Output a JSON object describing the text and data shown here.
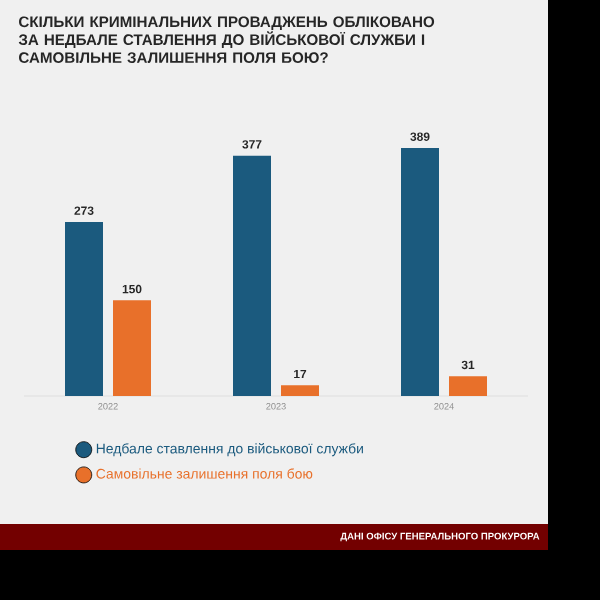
{
  "chart_data": {
    "type": "bar",
    "title": "СКІЛЬКИ КРИМІНАЛЬНИХ ПРОВАДЖЕНЬ ОБЛІКОВАНО ЗА НЕДБАЛЕ СТАВЛЕННЯ ДО ВІЙСЬКОВОЇ СЛУЖБИ І САМОВІЛЬНЕ ЗАЛИШЕННЯ ПОЛЯ БОЮ?",
    "categories": [
      "2022",
      "2023",
      "2024"
    ],
    "series": [
      {
        "name": "Недбале ставлення до військової служби",
        "color": "#1b5a7e",
        "values": [
          273,
          377,
          389
        ]
      },
      {
        "name": "Самовільне залишення поля бою",
        "color": "#e8702a",
        "values": [
          150,
          17,
          31
        ]
      }
    ],
    "data_labels": true,
    "legend": "bottom",
    "marker": "circle",
    "annotations": [
      "ДАНІ ОФІСУ ГЕНЕРАЛЬНОГО ПРОКУРОРА"
    ]
  }
}
